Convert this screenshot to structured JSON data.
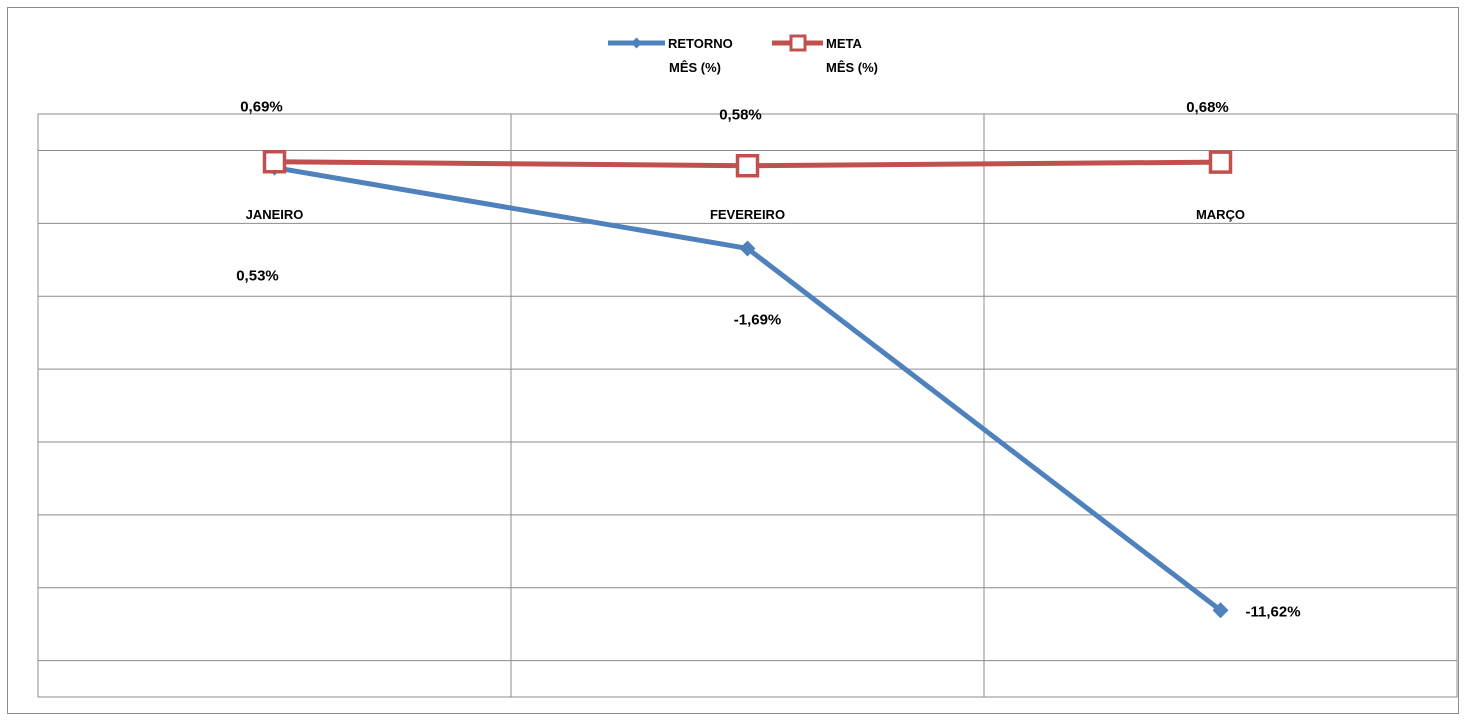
{
  "chart_data": {
    "type": "line",
    "categories": [
      "JANEIRO",
      "FEVEREIRO",
      "MARÇO"
    ],
    "series": [
      {
        "name_lines": [
          "RETORNO",
          "MÊS (%)"
        ],
        "values": [
          0.53,
          -1.69,
          -11.62
        ],
        "labels": [
          "0,53%",
          "-1,69%",
          "-11,62%"
        ],
        "color": "#4f81bd",
        "marker": "diamond"
      },
      {
        "name_lines": [
          "META",
          "MÊS  (%)"
        ],
        "values": [
          0.69,
          0.58,
          0.68
        ],
        "labels": [
          "0,69%",
          "0,58%",
          "0,68%"
        ],
        "color": "#c0504d",
        "marker": "square"
      }
    ],
    "ylim": [
      -14,
      2
    ],
    "legend_position": "top",
    "grid": true
  }
}
